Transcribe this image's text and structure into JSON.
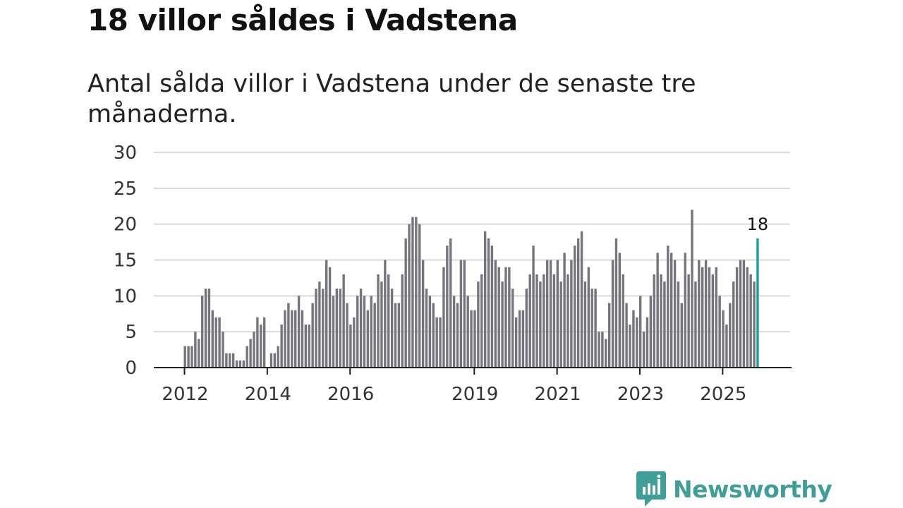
{
  "title": "18 villor såldes i Vadstena",
  "subtitle": "Antal sålda villor i Vadstena under de senaste tre månaderna.",
  "brand": {
    "name": "Newsworthy",
    "icon": "newsworthy-logo-icon",
    "color": "#3f9e97"
  },
  "colors": {
    "bar": "#76757d",
    "highlight": "#19a09a",
    "grid": "#d9d9d9",
    "axis": "#222222"
  },
  "chart_data": {
    "type": "bar",
    "title": "18 villor såldes i Vadstena",
    "xlabel": "",
    "ylabel": "",
    "ylim": [
      0,
      30
    ],
    "yticks": [
      0,
      5,
      10,
      15,
      20,
      25,
      30
    ],
    "grid": true,
    "start": "2012-01",
    "interval": "month",
    "xtick_labels": [
      "2012",
      "2014",
      "2016",
      "2019",
      "2021",
      "2023",
      "2025"
    ],
    "highlight_label": "18",
    "values": [
      3,
      3,
      3,
      5,
      4,
      10,
      11,
      11,
      8,
      7,
      7,
      5,
      2,
      2,
      2,
      1,
      1,
      1,
      3,
      4,
      5,
      7,
      6,
      7,
      0,
      2,
      2,
      3,
      6,
      8,
      9,
      8,
      8,
      10,
      8,
      6,
      6,
      9,
      11,
      12,
      11,
      15,
      14,
      10,
      11,
      11,
      13,
      9,
      6,
      7,
      10,
      11,
      10,
      8,
      10,
      9,
      13,
      12,
      15,
      13,
      11,
      9,
      9,
      13,
      18,
      20,
      21,
      21,
      20,
      15,
      11,
      10,
      9,
      7,
      7,
      14,
      17,
      18,
      10,
      9,
      15,
      15,
      10,
      8,
      8,
      12,
      13,
      19,
      18,
      17,
      15,
      14,
      12,
      14,
      14,
      11,
      7,
      8,
      8,
      11,
      13,
      17,
      13,
      12,
      13,
      15,
      15,
      13,
      15,
      12,
      16,
      13,
      15,
      17,
      18,
      19,
      12,
      14,
      11,
      11,
      5,
      5,
      4,
      9,
      15,
      18,
      16,
      13,
      9,
      6,
      8,
      7,
      10,
      5,
      7,
      10,
      13,
      16,
      13,
      12,
      17,
      16,
      15,
      12,
      9,
      16,
      13,
      22,
      12,
      15,
      14,
      15,
      14,
      13,
      14,
      10,
      8,
      6,
      9,
      12,
      14,
      15,
      15,
      14,
      13,
      12,
      18
    ]
  }
}
